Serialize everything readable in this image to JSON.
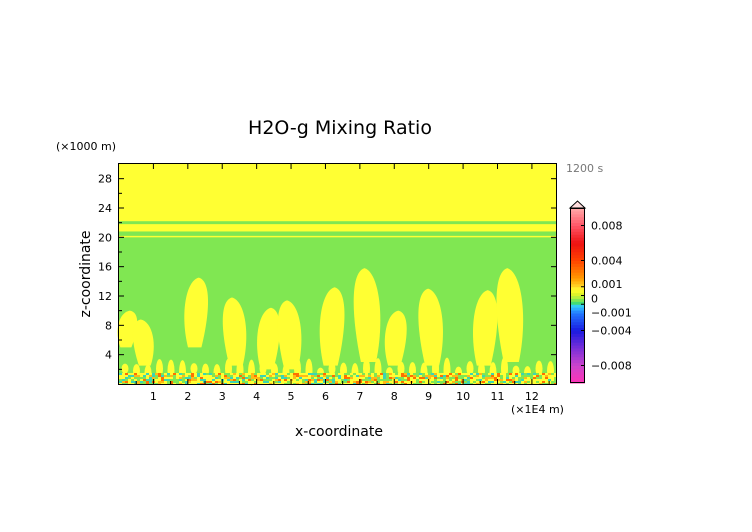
{
  "chart_data": {
    "type": "heatmap",
    "title": "H2O-g Mixing Ratio",
    "xlabel": "x-coordinate",
    "ylabel": "z-coordinate",
    "x_unit": "(×1E4 m)",
    "y_unit": "(×1000 m)",
    "time_label": "1200 s",
    "xlim": [
      0,
      12.7
    ],
    "ylim": [
      0,
      30
    ],
    "x_ticks": [
      "1",
      "2",
      "3",
      "4",
      "5",
      "6",
      "7",
      "8",
      "9",
      "10",
      "11",
      "12"
    ],
    "y_ticks": [
      "4",
      "8",
      "12",
      "16",
      "20",
      "24",
      "28"
    ],
    "colorbar": {
      "min": -0.01,
      "max": 0.01,
      "tick_labels": [
        "0.008",
        "0.004",
        "0.001",
        "0",
        "−0.001",
        "−0.004",
        "−0.008"
      ],
      "tick_values": [
        0.008,
        0.004,
        0.001,
        0,
        -0.001,
        -0.004,
        -0.008
      ]
    },
    "field": {
      "background_value": -0.0005,
      "upper_band": {
        "z_range": [
          20,
          30
        ],
        "value": 0.0007
      },
      "stripes": [
        {
          "z_range": [
            20.2,
            20.8
          ],
          "value": -0.0005
        },
        {
          "z_range": [
            21.8,
            22.2
          ],
          "value": -0.0005
        }
      ],
      "plume_value": 0.0007,
      "plumes": [
        {
          "x": 0.2,
          "z_range": [
            5.0,
            10.0
          ]
        },
        {
          "x": 0.75,
          "z_range": [
            2.5,
            8.8
          ]
        },
        {
          "x": 2.2,
          "z_range": [
            5.0,
            14.5
          ]
        },
        {
          "x": 3.4,
          "z_range": [
            2.5,
            11.8
          ]
        },
        {
          "x": 4.3,
          "z_range": [
            2.0,
            10.4
          ]
        },
        {
          "x": 5.0,
          "z_range": [
            2.0,
            11.4
          ]
        },
        {
          "x": 6.15,
          "z_range": [
            2.5,
            13.2
          ]
        },
        {
          "x": 7.25,
          "z_range": [
            3.0,
            15.8
          ]
        },
        {
          "x": 8.0,
          "z_range": [
            2.5,
            10.0
          ]
        },
        {
          "x": 9.1,
          "z_range": [
            2.5,
            13.0
          ]
        },
        {
          "x": 10.6,
          "z_range": [
            2.5,
            12.8
          ]
        },
        {
          "x": 11.4,
          "z_range": [
            3.0,
            15.8
          ]
        }
      ],
      "surface_noise_z_range": [
        0,
        1.5
      ]
    }
  }
}
